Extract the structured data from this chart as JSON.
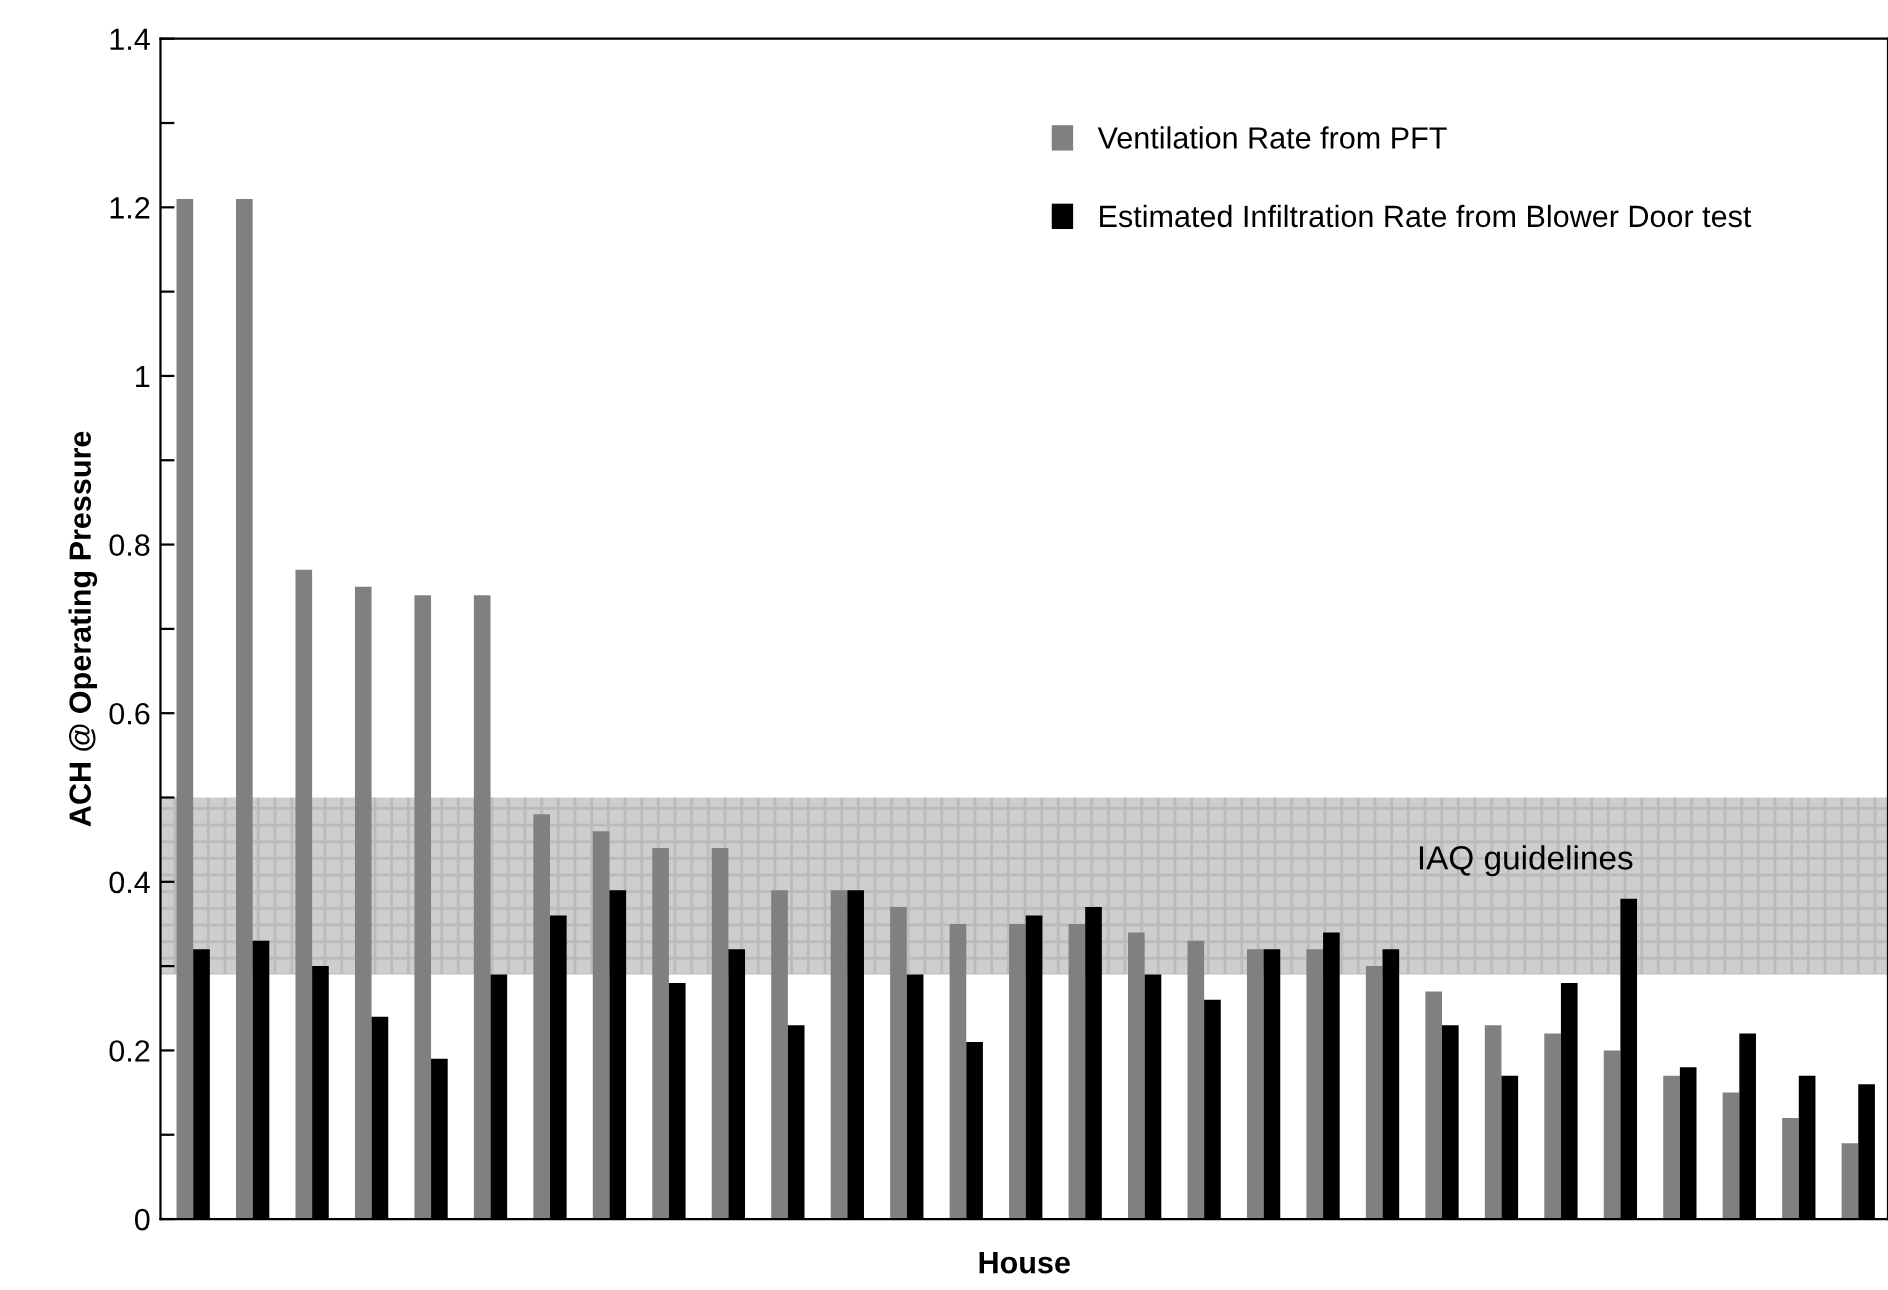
{
  "chart_data": {
    "type": "bar",
    "xlabel": "House",
    "ylabel": "ACH @ Operating Pressure",
    "categories": [
      null,
      null,
      null,
      null,
      null,
      null,
      null,
      null,
      null,
      null,
      null,
      null,
      null,
      null,
      null,
      null,
      null,
      null,
      null,
      null,
      null,
      null,
      null,
      null,
      null,
      null,
      null,
      null,
      null
    ],
    "series": [
      {
        "name": "Ventilation Rate from PFT",
        "color": "#808080",
        "values": [
          1.21,
          1.21,
          0.77,
          0.75,
          0.74,
          0.74,
          0.48,
          0.46,
          0.44,
          0.44,
          0.39,
          0.39,
          0.37,
          0.35,
          0.35,
          0.35,
          0.34,
          0.33,
          0.32,
          0.32,
          0.3,
          0.27,
          0.23,
          0.22,
          0.2,
          0.17,
          0.15,
          0.12,
          0.09
        ]
      },
      {
        "name": "Estimated Infiltration Rate from Blower Door test",
        "color": "#000000",
        "values": [
          0.32,
          0.33,
          0.3,
          0.24,
          0.19,
          0.29,
          0.36,
          0.39,
          0.28,
          0.32,
          0.23,
          0.39,
          0.29,
          0.21,
          0.36,
          0.37,
          0.29,
          0.26,
          0.32,
          0.34,
          0.32,
          0.23,
          0.17,
          0.28,
          0.38,
          0.18,
          0.22,
          0.17,
          0.16
        ]
      }
    ],
    "ylim": [
      0,
      1.4
    ],
    "yticks": [
      0,
      {
        "value": 0.1,
        "label": null
      },
      0.2,
      {
        "value": 0.3,
        "label": null
      },
      0.4,
      {
        "value": 0.5,
        "label": null
      },
      0.6,
      {
        "value": 0.7,
        "label": null
      },
      0.8,
      {
        "value": 0.9,
        "label": null
      },
      1,
      {
        "value": 1.1,
        "label": null
      },
      1.2,
      {
        "value": 1.3,
        "label": null
      },
      1.4
    ],
    "bands": [
      {
        "axis": "y",
        "from": 0.29,
        "to": 0.5,
        "label": "IAQ guidelines",
        "color": "#bdbdbd"
      }
    ],
    "legend": "top right",
    "grid": false
  }
}
